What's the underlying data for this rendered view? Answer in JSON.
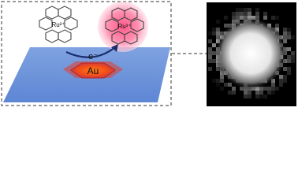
{
  "labels": {
    "left_ion": "Ru²⁺",
    "right_ion": "Ru³⁺",
    "electron": "e⁻",
    "electrode": "Au"
  }
}
